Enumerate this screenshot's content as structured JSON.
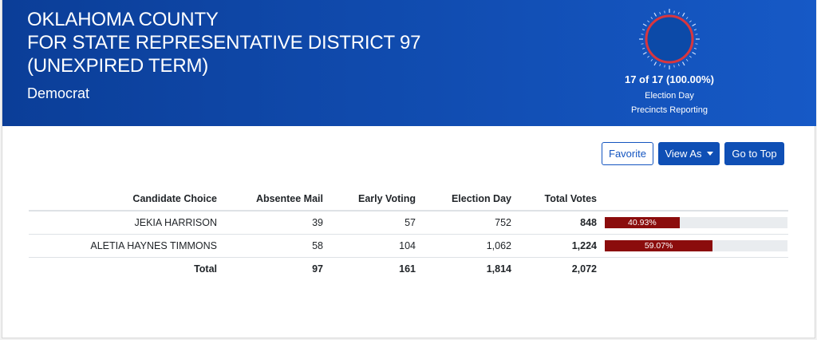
{
  "header": {
    "title_lines": [
      "OKLAHOMA COUNTY",
      "FOR STATE REPRESENTATIVE DISTRICT 97",
      "(UNEXPIRED TERM)"
    ],
    "party": "Democrat",
    "reporting": {
      "summary": "17 of 17 (100.00%)",
      "line1": "Election Day",
      "line2": "Precincts Reporting",
      "fraction": 1.0
    }
  },
  "toolbar": {
    "favorite_label": "Favorite",
    "view_as_label": "View As",
    "go_to_top_label": "Go to Top"
  },
  "table": {
    "columns": [
      "Candidate Choice",
      "Absentee Mail",
      "Early Voting",
      "Election Day",
      "Total Votes"
    ],
    "rows": [
      {
        "name": "JEKIA HARRISON",
        "absentee": "39",
        "early": "57",
        "election_day": "752",
        "total": "848",
        "percent_label": "40.93%",
        "percent": 40.93
      },
      {
        "name": "ALETIA HAYNES TIMMONS",
        "absentee": "58",
        "early": "104",
        "election_day": "1,062",
        "total": "1,224",
        "percent_label": "59.07%",
        "percent": 59.07
      }
    ],
    "totals": {
      "label": "Total",
      "absentee": "97",
      "early": "161",
      "election_day": "1,814",
      "total": "2,072"
    }
  },
  "colors": {
    "header_start": "#0b3e98",
    "header_end": "#1659c6",
    "bar_fill": "#8b0c0c",
    "gauge_ring": "#d9363e",
    "button_primary": "#0f4fb5"
  }
}
